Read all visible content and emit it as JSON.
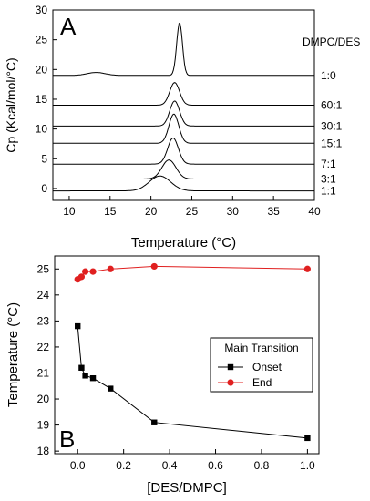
{
  "chart_data": [
    {
      "panel": "A",
      "type": "line",
      "xlabel": "Temperature (°C)",
      "ylabel": "Cp (Kcal/mol/°C)",
      "xlim": [
        8,
        40
      ],
      "ylim": [
        -2,
        30
      ],
      "xticks": [
        10,
        15,
        20,
        25,
        30,
        35,
        40
      ],
      "yticks": [
        0,
        5,
        10,
        15,
        20,
        25,
        30
      ],
      "legend_title": "DMPC/DES",
      "series": [
        {
          "name": "1:0",
          "baseline": 19,
          "peak_x": 23.5,
          "peak_height": 8.9,
          "width": 0.35,
          "pre_x": 13.3,
          "pre_height": 0.5,
          "pre_width": 1.1
        },
        {
          "name": "60:1",
          "baseline": 14,
          "peak_x": 22.9,
          "peak_height": 3.8,
          "width": 0.6
        },
        {
          "name": "30:1",
          "baseline": 10.5,
          "peak_x": 22.9,
          "peak_height": 4.2,
          "width": 0.6
        },
        {
          "name": "15:1",
          "baseline": 7.6,
          "peak_x": 22.8,
          "peak_height": 4.9,
          "width": 0.6
        },
        {
          "name": "7:1",
          "baseline": 4.1,
          "peak_x": 22.7,
          "peak_height": 4.4,
          "width": 0.65
        },
        {
          "name": "3:1",
          "baseline": 1.6,
          "peak_x": 22.2,
          "peak_height": 3.2,
          "width": 0.85
        },
        {
          "name": "1:1",
          "baseline": -0.4,
          "peak_x": 21.1,
          "peak_height": 2.5,
          "width": 1.3
        }
      ]
    },
    {
      "panel": "B",
      "type": "scatter",
      "xlabel": "[DES/DMPC]",
      "ylabel": "Temperature (°C)",
      "xlim": [
        -0.1,
        1.05
      ],
      "ylim": [
        17.9,
        25.5
      ],
      "xticks": [
        "0.0",
        "0.2",
        "0.4",
        "0.6",
        "0.8",
        "1.0"
      ],
      "yticks": [
        18,
        19,
        20,
        21,
        22,
        23,
        24,
        25
      ],
      "legend_title": "Main Transition",
      "series": [
        {
          "name": "Onset",
          "color": "#000000",
          "marker": "square",
          "x": [
            0.0,
            0.0167,
            0.0333,
            0.0667,
            0.1429,
            0.3333,
            1.0
          ],
          "y": [
            22.8,
            21.2,
            20.9,
            20.8,
            20.4,
            19.1,
            18.5
          ]
        },
        {
          "name": "End",
          "color": "#e02020",
          "marker": "circle",
          "x": [
            0.0,
            0.0167,
            0.0333,
            0.0667,
            0.1429,
            0.3333,
            1.0
          ],
          "y": [
            24.6,
            24.7,
            24.9,
            24.9,
            25.0,
            25.1,
            25.0
          ]
        }
      ]
    }
  ]
}
